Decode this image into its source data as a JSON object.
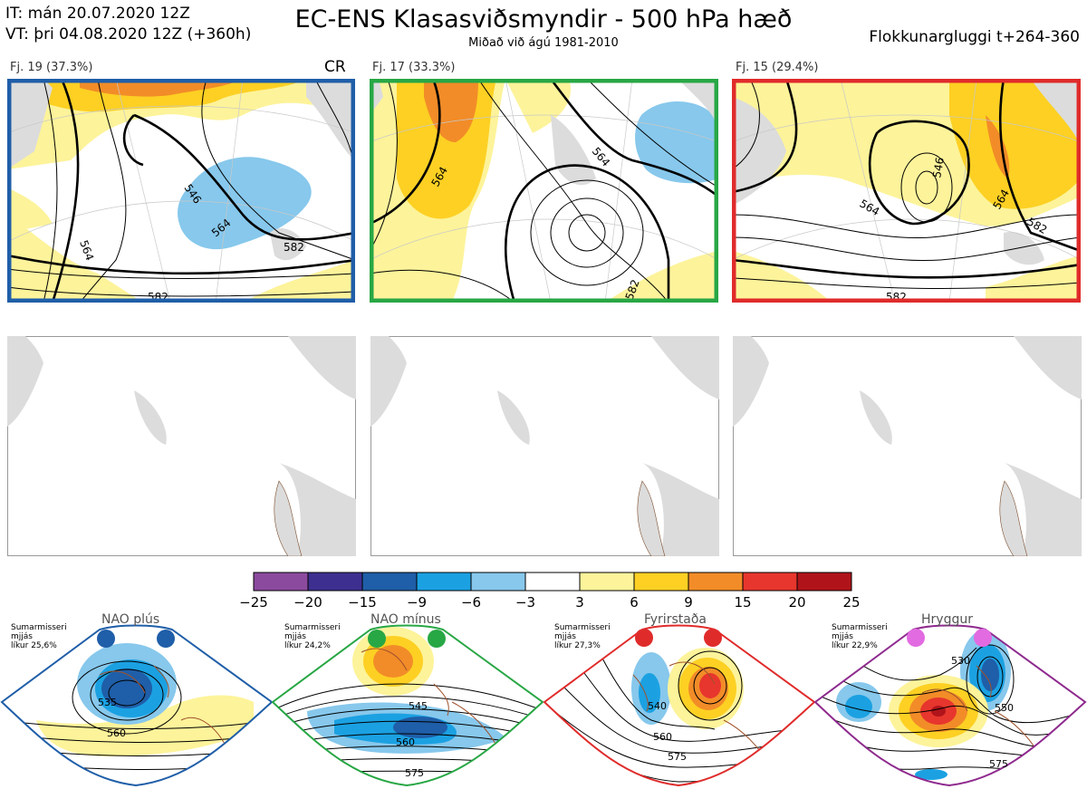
{
  "header": {
    "it_line": "IT: mán 20.07.2020 12Z",
    "vt_line": "VT: þri 04.08.2020 12Z  (+360h)",
    "title": "EC-ENS Klasasviðsmyndir - 500 hPa hæð",
    "subtitle": "Miðað við ágú 1981-2010",
    "window": "Flokkunargluggi t+264-360"
  },
  "panels": [
    {
      "label": "Fj. 19 (37.3%)",
      "tag": "CR",
      "border": "#1f5ea8",
      "contours": [
        "546",
        "564",
        "582",
        "564",
        "582"
      ]
    },
    {
      "label": "Fj. 17 (33.3%)",
      "tag": "",
      "border": "#28a745",
      "contours": [
        "564",
        "564",
        "582"
      ]
    },
    {
      "label": "Fj. 15 (29.4%)",
      "tag": "",
      "border": "#e02b2b",
      "contours": [
        "546",
        "564",
        "564",
        "582",
        "582"
      ]
    }
  ],
  "colorbar": {
    "colors": [
      "#8b4a9e",
      "#3d2f8f",
      "#1f5ea8",
      "#1ba1e2",
      "#87c8ec",
      "#ffffff",
      "#fdf39a",
      "#fdd023",
      "#f28c28",
      "#e7362d",
      "#b0141a"
    ],
    "ticks": [
      "−25",
      "−20",
      "−15",
      "−9",
      "−6",
      "−3",
      "3",
      "6",
      "9",
      "15",
      "20",
      "25"
    ]
  },
  "regimes": [
    {
      "name": "NAO plús",
      "season": "Sumarmisseri",
      "freq_label": "mjjás",
      "prob": "líkur 25,6%",
      "color": "#1f5ea8",
      "border": "#1f5ea8",
      "contours": [
        "535",
        "560"
      ]
    },
    {
      "name": "NAO mínus",
      "season": "Sumarmisseri",
      "freq_label": "mjjás",
      "prob": "líkur 24,2%",
      "color": "#28a745",
      "border": "#28a745",
      "contours": [
        "545",
        "560",
        "575"
      ]
    },
    {
      "name": "Fyrirstaða",
      "season": "Sumarmisseri",
      "freq_label": "mjjás",
      "prob": "líkur 27,3%",
      "color": "#e02b2b",
      "border": "#e02b2b",
      "contours": [
        "540",
        "560",
        "575"
      ]
    },
    {
      "name": "Hryggur",
      "season": "Sumarmisseri",
      "freq_label": "mjjás",
      "prob": "líkur 22,9%",
      "color": "#e26be2",
      "border": "#8e2a8e",
      "contours": [
        "530",
        "550",
        "575"
      ]
    }
  ]
}
